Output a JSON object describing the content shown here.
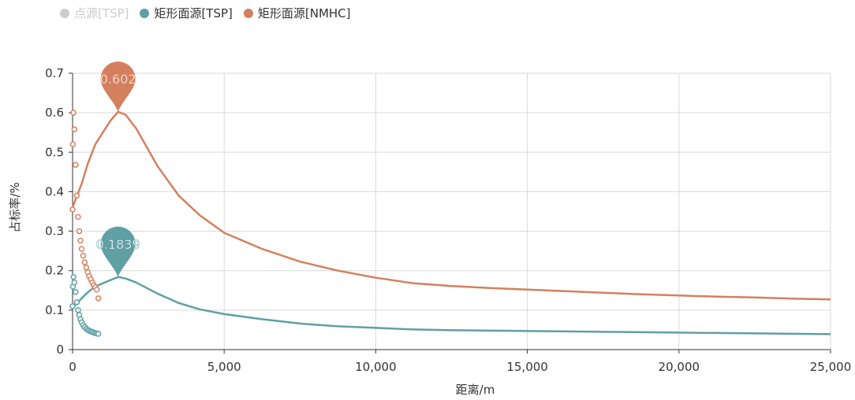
{
  "chart_data": {
    "type": "line",
    "xlabel": "距离/m",
    "ylabel": "占标率/%",
    "xlim": [
      0,
      25000
    ],
    "ylim": [
      0,
      0.7
    ],
    "x_ticks": [
      "0",
      "5,000",
      "10,000",
      "15,000",
      "20,000",
      "25,000"
    ],
    "y_ticks": [
      "0",
      "0.1",
      "0.2",
      "0.3",
      "0.4",
      "0.5",
      "0.6",
      "0.7"
    ],
    "grid": true,
    "legend_position": "top-left",
    "series": [
      {
        "name": "点源[TSP]",
        "color": "#cccccc",
        "visible": false,
        "x": [],
        "y": []
      },
      {
        "name": "矩形面源[TSP]",
        "color": "#5fa0a4",
        "visible": true,
        "x": [
          0,
          50,
          100,
          150,
          200,
          300,
          500,
          750,
          1000,
          1250,
          1500,
          1750,
          2100,
          2800,
          3500,
          4200,
          5000,
          6250,
          7500,
          8750,
          10000,
          11250,
          12500,
          13750,
          15000,
          16250,
          17500,
          18750,
          20000,
          21250,
          22500,
          23750,
          25000
        ],
        "y": [
          0.108,
          0.11,
          0.114,
          0.118,
          0.122,
          0.13,
          0.145,
          0.16,
          0.168,
          0.176,
          0.1839,
          0.18,
          0.17,
          0.142,
          0.118,
          0.102,
          0.09,
          0.077,
          0.066,
          0.059,
          0.055,
          0.051,
          0.049,
          0.048,
          0.047,
          0.046,
          0.045,
          0.044,
          0.043,
          0.042,
          0.041,
          0.04,
          0.039
        ],
        "peak": {
          "x": 1500,
          "y": 0.1839,
          "label": "0.1839"
        },
        "scatter_x": [
          0,
          10,
          30,
          60,
          100,
          140,
          180,
          220,
          260,
          300,
          350,
          400,
          450,
          500,
          550,
          600,
          650,
          700,
          750,
          800,
          850
        ],
        "scatter_y": [
          0.11,
          0.16,
          0.184,
          0.17,
          0.146,
          0.12,
          0.1,
          0.088,
          0.077,
          0.069,
          0.062,
          0.057,
          0.053,
          0.05,
          0.048,
          0.046,
          0.045,
          0.043,
          0.042,
          0.041,
          0.04
        ]
      },
      {
        "name": "矩形面源[NMHC]",
        "color": "#d4805e",
        "visible": true,
        "x": [
          0,
          50,
          100,
          200,
          300,
          500,
          750,
          1000,
          1250,
          1500,
          1750,
          2100,
          2800,
          3500,
          4200,
          5000,
          6250,
          7500,
          8750,
          10000,
          11250,
          12500,
          13750,
          15000,
          16250,
          17500,
          18750,
          20000,
          21250,
          22500,
          23750,
          25000
        ],
        "y": [
          0.36,
          0.37,
          0.38,
          0.4,
          0.42,
          0.47,
          0.52,
          0.55,
          0.58,
          0.602,
          0.595,
          0.56,
          0.465,
          0.39,
          0.34,
          0.296,
          0.255,
          0.223,
          0.2,
          0.182,
          0.168,
          0.161,
          0.156,
          0.152,
          0.148,
          0.144,
          0.14,
          0.137,
          0.134,
          0.132,
          0.129,
          0.127
        ],
        "peak": {
          "x": 1500,
          "y": 0.602,
          "label": "0.602"
        },
        "scatter_x": [
          0,
          10,
          30,
          60,
          100,
          140,
          180,
          220,
          260,
          300,
          350,
          400,
          450,
          500,
          550,
          600,
          650,
          700,
          750,
          800,
          850
        ],
        "scatter_y": [
          0.355,
          0.52,
          0.6,
          0.558,
          0.468,
          0.39,
          0.336,
          0.3,
          0.276,
          0.255,
          0.238,
          0.221,
          0.208,
          0.196,
          0.186,
          0.178,
          0.17,
          0.163,
          0.158,
          0.152,
          0.13
        ]
      }
    ]
  }
}
